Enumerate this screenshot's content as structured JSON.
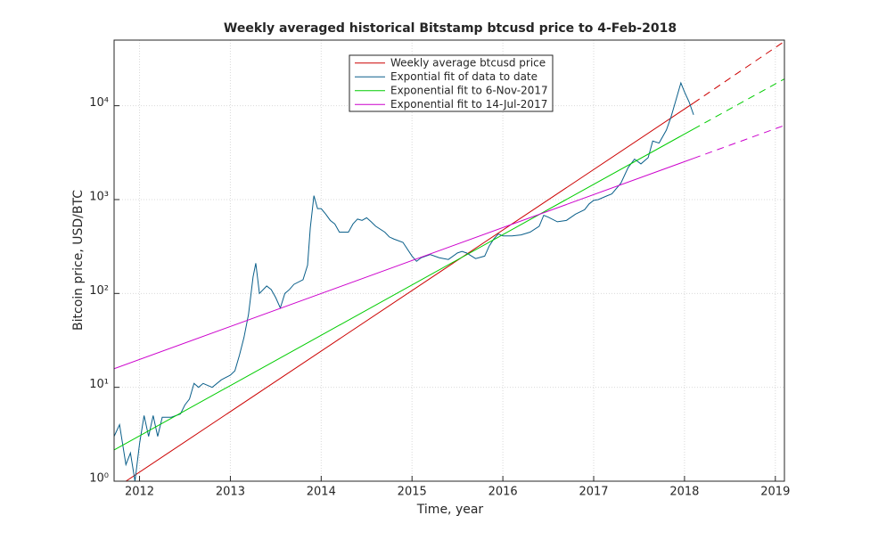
{
  "chart_data": {
    "type": "line",
    "title": "Weekly averaged historical Bitstamp btcusd price to 4-Feb-2018",
    "x_label": "Time, year",
    "y_label": "Bitcoin price, USD/BTC",
    "xlim": [
      2011.72,
      2019.1
    ],
    "ylim": [
      1,
      50000
    ],
    "y_scale": "log",
    "grid": true,
    "legend": "top",
    "xticks": [
      2012,
      2013,
      2014,
      2015,
      2016,
      2017,
      2018,
      2019
    ],
    "yticks": [
      {
        "value": 1,
        "label": "10⁰"
      },
      {
        "value": 10,
        "label": "10¹"
      },
      {
        "value": 100,
        "label": "10²"
      },
      {
        "value": 1000,
        "label": "10³"
      },
      {
        "value": 10000,
        "label": "10⁴"
      }
    ],
    "series": [
      {
        "name": "Weekly average btcusd price",
        "color": "#cc0000",
        "line_styles": [
          "solid",
          "dashed"
        ],
        "x": [
          2011.85,
          2018.1,
          2019.1
        ],
        "values": [
          1,
          10700,
          48500
        ]
      },
      {
        "name": "Expontial fit of data to date",
        "color": "#0a5f8a",
        "line_styles": [
          "solid"
        ],
        "x": [
          2011.72,
          2011.78,
          2011.85,
          2011.9,
          2011.95,
          2012.0,
          2012.05,
          2012.1,
          2012.15,
          2012.2,
          2012.25,
          2012.35,
          2012.45,
          2012.5,
          2012.55,
          2012.6,
          2012.65,
          2012.7,
          2012.8,
          2012.9,
          2013.0,
          2013.05,
          2013.1,
          2013.15,
          2013.2,
          2013.25,
          2013.28,
          2013.32,
          2013.4,
          2013.45,
          2013.5,
          2013.55,
          2013.6,
          2013.65,
          2013.7,
          2013.8,
          2013.85,
          2013.88,
          2013.92,
          2013.96,
          2014.0,
          2014.05,
          2014.1,
          2014.15,
          2014.2,
          2014.3,
          2014.35,
          2014.4,
          2014.45,
          2014.5,
          2014.55,
          2014.6,
          2014.7,
          2014.75,
          2014.8,
          2014.9,
          2015.0,
          2015.05,
          2015.1,
          2015.2,
          2015.3,
          2015.4,
          2015.5,
          2015.55,
          2015.6,
          2015.7,
          2015.8,
          2015.85,
          2015.9,
          2015.95,
          2016.0,
          2016.1,
          2016.2,
          2016.3,
          2016.4,
          2016.45,
          2016.5,
          2016.6,
          2016.7,
          2016.8,
          2016.9,
          2016.95,
          2017.0,
          2017.05,
          2017.15,
          2017.2,
          2017.3,
          2017.38,
          2017.45,
          2017.52,
          2017.6,
          2017.65,
          2017.72,
          2017.8,
          2017.85,
          2017.9,
          2017.96,
          2018.0,
          2018.05,
          2018.1
        ],
        "values": [
          3,
          4,
          1.5,
          2,
          1,
          2.5,
          5,
          3,
          5,
          3,
          4.8,
          4.8,
          5.2,
          6.5,
          7.5,
          11,
          10,
          11,
          10,
          12,
          13.5,
          15,
          22,
          34,
          60,
          150,
          210,
          100,
          120,
          110,
          90,
          70,
          100,
          110,
          125,
          140,
          200,
          500,
          1100,
          800,
          800,
          700,
          600,
          550,
          450,
          450,
          550,
          620,
          600,
          640,
          580,
          520,
          450,
          400,
          380,
          350,
          250,
          220,
          240,
          260,
          240,
          230,
          270,
          280,
          270,
          235,
          250,
          320,
          380,
          430,
          410,
          410,
          420,
          450,
          520,
          680,
          650,
          580,
          600,
          700,
          780,
          900,
          980,
          1000,
          1100,
          1150,
          1500,
          2200,
          2700,
          2400,
          2800,
          4200,
          4000,
          5500,
          7500,
          11000,
          17500,
          14000,
          11000,
          8000
        ]
      },
      {
        "name": "Exponential fit to 6-Nov-2017",
        "color": "#00cc00",
        "line_styles": [
          "solid",
          "dashed"
        ],
        "x": [
          2011.72,
          2018.1,
          2019.1
        ],
        "values": [
          2.15,
          5650,
          19300
        ]
      },
      {
        "name": "Exponential fit to 14-Jul-2017",
        "color": "#cc00cc",
        "line_styles": [
          "solid",
          "dashed"
        ],
        "x": [
          2011.72,
          2018.1,
          2019.1
        ],
        "values": [
          15.8,
          2750,
          6170
        ]
      }
    ]
  }
}
